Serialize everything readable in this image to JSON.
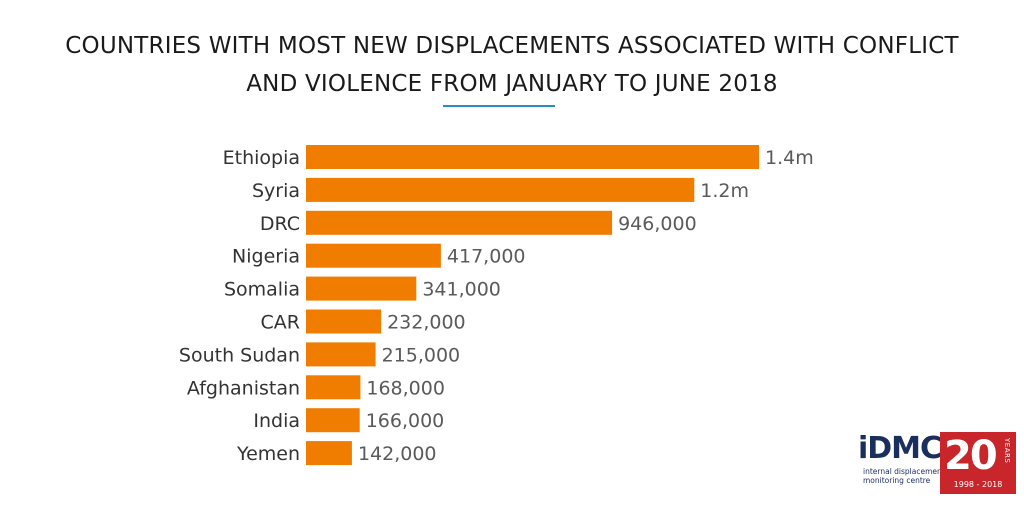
{
  "header": {
    "title_line1": "COUNTRIES WITH MOST NEW DISPLACEMENTS ASSOCIATED WITH CONFLICT",
    "title_line2": "AND VIOLENCE FROM JANUARY TO JUNE 2018"
  },
  "colors": {
    "bar": "#f07c00",
    "rule": "#2a8bc4",
    "logo_text": "#1b2f5c",
    "badge": "#c8262b"
  },
  "chart_data": {
    "type": "bar",
    "orientation": "horizontal",
    "title": "COUNTRIES WITH MOST NEW DISPLACEMENTS ASSOCIATED WITH CONFLICT AND VIOLENCE FROM JANUARY TO JUNE 2018",
    "categories": [
      "Ethiopia",
      "Syria",
      "DRC",
      "Nigeria",
      "Somalia",
      "CAR",
      "South Sudan",
      "Afghanistan",
      "India",
      "Yemen"
    ],
    "values": [
      1400000,
      1200000,
      946000,
      417000,
      341000,
      232000,
      215000,
      168000,
      166000,
      142000
    ],
    "value_labels": [
      "1.4m",
      "1.2m",
      "946,000",
      "417,000",
      "341,000",
      "232,000",
      "215,000",
      "168,000",
      "166,000",
      "142,000"
    ],
    "xlabel": "",
    "ylabel": "",
    "xlim": [
      0,
      1400000
    ],
    "grid": false,
    "legend": "none"
  },
  "logo": {
    "name": "iDMC",
    "subtitle_line1": "internal displacement",
    "subtitle_line2": "monitoring centre",
    "badge_number": "20",
    "badge_word": "YEARS",
    "badge_range": "1998 - 2018"
  }
}
